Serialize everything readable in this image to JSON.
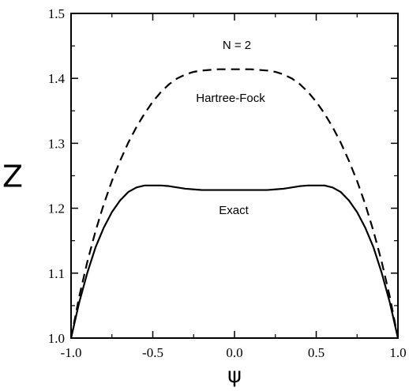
{
  "chart_data": {
    "type": "line",
    "xlabel": "ψ",
    "ylabel": "Z",
    "xlim": [
      -1.0,
      1.0
    ],
    "ylim": [
      1.0,
      1.5
    ],
    "x_ticks": [
      "-1.0",
      "-0.5",
      "0.0",
      "0.5",
      "1.0"
    ],
    "y_ticks": [
      "1.0",
      "1.1",
      "1.2",
      "1.3",
      "1.4",
      "1.5"
    ],
    "grid": false,
    "annotations": [
      "N = 2",
      "Hartree-Fock",
      "Exact"
    ],
    "series": [
      {
        "name": "Hartree-Fock",
        "style": "dashed",
        "x": [
          -1.0,
          -0.95,
          -0.9,
          -0.85,
          -0.8,
          -0.75,
          -0.7,
          -0.65,
          -0.6,
          -0.55,
          -0.5,
          -0.45,
          -0.4,
          -0.35,
          -0.3,
          -0.25,
          -0.2,
          -0.15,
          -0.1,
          -0.05,
          0.0,
          0.05,
          0.1,
          0.15,
          0.2,
          0.25,
          0.3,
          0.35,
          0.4,
          0.45,
          0.5,
          0.55,
          0.6,
          0.65,
          0.7,
          0.75,
          0.8,
          0.85,
          0.9,
          0.95,
          1.0
        ],
        "y": [
          1.0,
          1.064,
          1.118,
          1.165,
          1.206,
          1.242,
          1.273,
          1.301,
          1.325,
          1.346,
          1.364,
          1.379,
          1.391,
          1.4,
          1.406,
          1.41,
          1.412,
          1.413,
          1.414,
          1.414,
          1.414,
          1.414,
          1.414,
          1.413,
          1.412,
          1.41,
          1.406,
          1.4,
          1.391,
          1.379,
          1.364,
          1.346,
          1.325,
          1.301,
          1.273,
          1.242,
          1.206,
          1.165,
          1.118,
          1.064,
          1.0
        ]
      },
      {
        "name": "Exact",
        "style": "solid",
        "x": [
          -1.0,
          -0.95,
          -0.9,
          -0.85,
          -0.8,
          -0.75,
          -0.7,
          -0.65,
          -0.6,
          -0.55,
          -0.5,
          -0.45,
          -0.4,
          -0.35,
          -0.3,
          -0.25,
          -0.2,
          -0.15,
          -0.1,
          -0.05,
          0.0,
          0.05,
          0.1,
          0.15,
          0.2,
          0.25,
          0.3,
          0.35,
          0.4,
          0.45,
          0.5,
          0.55,
          0.6,
          0.65,
          0.7,
          0.75,
          0.8,
          0.85,
          0.9,
          0.95,
          1.0
        ],
        "y": [
          1.0,
          1.055,
          1.101,
          1.14,
          1.17,
          1.194,
          1.212,
          1.225,
          1.232,
          1.235,
          1.235,
          1.235,
          1.234,
          1.232,
          1.23,
          1.229,
          1.228,
          1.228,
          1.228,
          1.228,
          1.228,
          1.228,
          1.228,
          1.228,
          1.228,
          1.229,
          1.23,
          1.232,
          1.234,
          1.235,
          1.235,
          1.235,
          1.232,
          1.225,
          1.212,
          1.194,
          1.17,
          1.14,
          1.101,
          1.055,
          1.0
        ]
      }
    ]
  }
}
